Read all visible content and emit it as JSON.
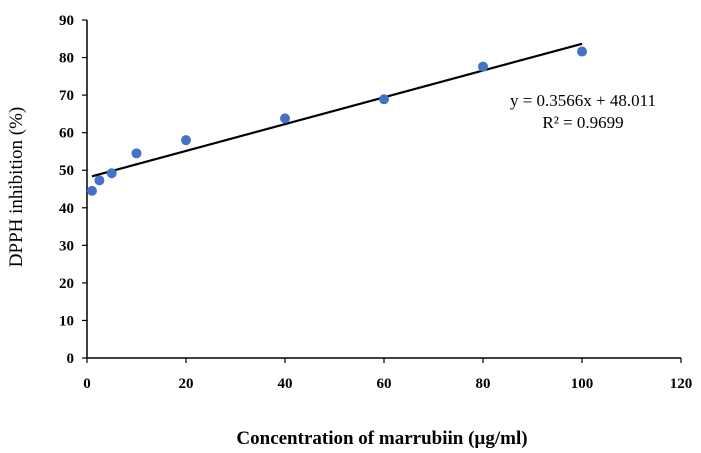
{
  "chart_data": {
    "type": "scatter",
    "title": "",
    "xlabel": "Concentration of marrubiin (µg/ml)",
    "ylabel": "DPPH inhibition (%)",
    "xlim": [
      0,
      120
    ],
    "ylim": [
      0,
      90
    ],
    "xticks": [
      "0",
      "20",
      "40",
      "60",
      "80",
      "100",
      "120"
    ],
    "yticks": [
      "0",
      "10",
      "20",
      "30",
      "40",
      "50",
      "60",
      "70",
      "80",
      "90"
    ],
    "series": [
      {
        "name": "DPPH inhibition",
        "color": "#4472C4",
        "x": [
          1,
          2.5,
          5,
          10,
          20,
          40,
          60,
          80,
          100
        ],
        "y": [
          44.5,
          47.3,
          49.2,
          54.5,
          58,
          63.8,
          68.9,
          77.6,
          81.6
        ]
      }
    ],
    "trendline": {
      "slope": 0.3566,
      "intercept": 48.011,
      "x_range": [
        1,
        100
      ],
      "color": "#000000",
      "equation": "y = 0.3566x + 48.011",
      "r_squared": "R² = 0.9699"
    },
    "grid": false,
    "legend": "none"
  }
}
